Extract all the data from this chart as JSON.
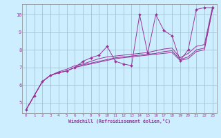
{
  "xlabel": "Windchill (Refroidissement éolien,°C)",
  "background_color": "#cceeff",
  "line_color": "#993399",
  "xlim": [
    -0.5,
    23.5
  ],
  "ylim": [
    4.4,
    10.6
  ],
  "yticks": [
    5,
    6,
    7,
    8,
    9,
    10
  ],
  "xticks": [
    0,
    1,
    2,
    3,
    4,
    5,
    6,
    7,
    8,
    9,
    10,
    11,
    12,
    13,
    14,
    15,
    16,
    17,
    18,
    19,
    20,
    21,
    22,
    23
  ],
  "grid_color": "#99bbcc",
  "x": [
    0,
    1,
    2,
    3,
    4,
    5,
    6,
    7,
    8,
    9,
    10,
    11,
    12,
    13,
    14,
    15,
    16,
    17,
    18,
    19,
    20,
    21,
    22,
    23
  ],
  "y_jagged": [
    4.6,
    5.4,
    6.2,
    6.55,
    6.7,
    6.8,
    7.0,
    7.35,
    7.55,
    7.7,
    8.2,
    7.35,
    7.2,
    7.1,
    10.0,
    7.8,
    10.0,
    9.1,
    8.8,
    7.4,
    8.0,
    10.3,
    10.4,
    10.4
  ],
  "y_line1": [
    4.6,
    5.4,
    6.2,
    6.55,
    6.7,
    6.8,
    7.0,
    7.1,
    7.2,
    7.3,
    7.4,
    7.5,
    7.55,
    7.6,
    7.65,
    7.7,
    7.75,
    7.8,
    7.85,
    7.4,
    7.5,
    7.9,
    8.0,
    10.3
  ],
  "y_line2": [
    4.6,
    5.4,
    6.2,
    6.55,
    6.7,
    6.8,
    7.0,
    7.15,
    7.25,
    7.35,
    7.45,
    7.55,
    7.6,
    7.65,
    7.7,
    7.75,
    7.8,
    7.9,
    7.95,
    7.45,
    7.6,
    8.0,
    8.1,
    10.35
  ],
  "y_line3": [
    4.6,
    5.4,
    6.2,
    6.55,
    6.75,
    6.9,
    7.1,
    7.2,
    7.35,
    7.5,
    7.6,
    7.65,
    7.7,
    7.75,
    7.8,
    7.85,
    7.95,
    8.05,
    8.1,
    7.55,
    7.8,
    8.2,
    8.3,
    10.45
  ]
}
